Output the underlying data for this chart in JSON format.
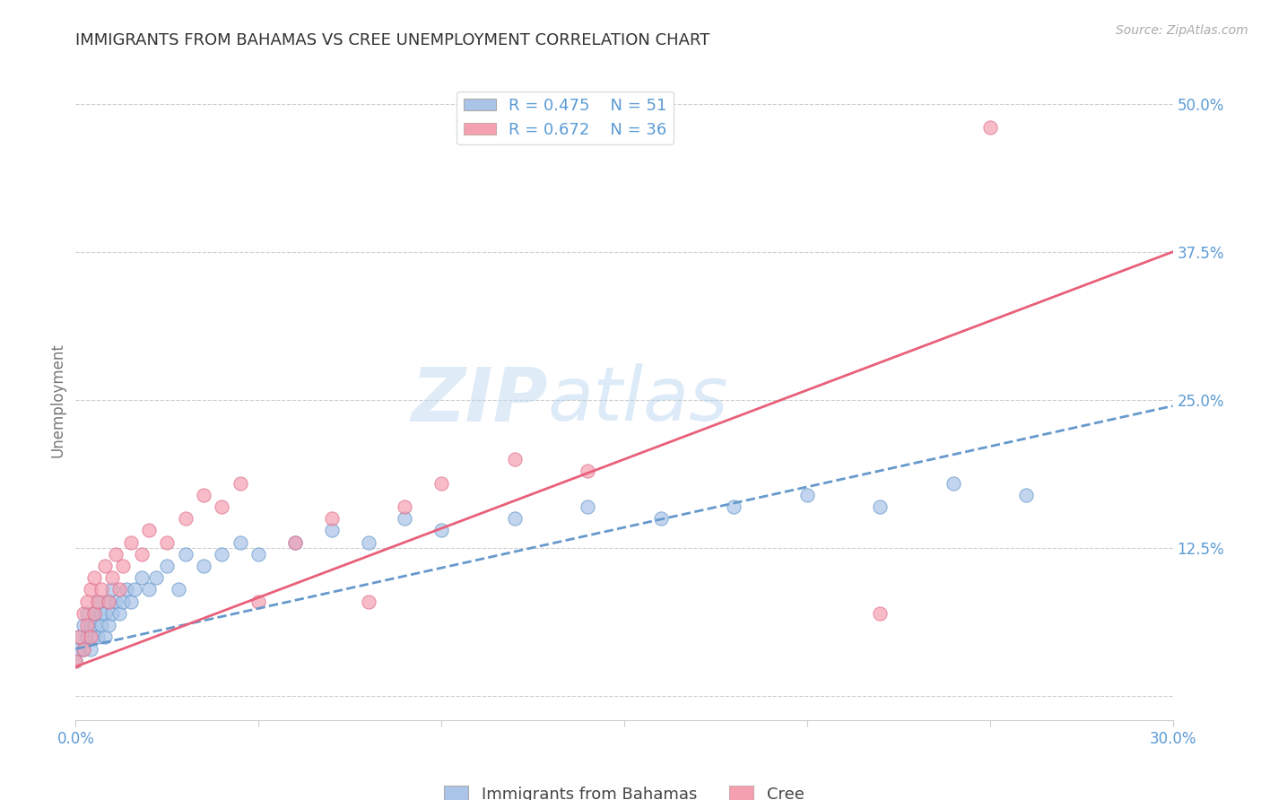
{
  "title": "IMMIGRANTS FROM BAHAMAS VS CREE UNEMPLOYMENT CORRELATION CHART",
  "source": "Source: ZipAtlas.com",
  "ylabel": "Unemployment",
  "legend_label_blue": "Immigrants from Bahamas",
  "legend_label_pink": "Cree",
  "R_blue": 0.475,
  "N_blue": 51,
  "R_pink": 0.672,
  "N_pink": 36,
  "xlim": [
    0.0,
    0.3
  ],
  "ylim": [
    -0.02,
    0.52
  ],
  "yticks": [
    0.0,
    0.125,
    0.25,
    0.375,
    0.5
  ],
  "ytick_labels": [
    "",
    "12.5%",
    "25.0%",
    "37.5%",
    "50.0%"
  ],
  "background_color": "#ffffff",
  "grid_color": "#c8c8c8",
  "title_color": "#333333",
  "axis_color": "#5b9bd5",
  "blue_scatter_color": "#aac4e8",
  "pink_scatter_color": "#f4a0b0",
  "blue_line_color": "#6699cc",
  "pink_line_color": "#e8607a",
  "blue_points_x": [
    0.0,
    0.001,
    0.001,
    0.002,
    0.002,
    0.003,
    0.003,
    0.004,
    0.004,
    0.005,
    0.005,
    0.005,
    0.006,
    0.006,
    0.007,
    0.007,
    0.008,
    0.008,
    0.009,
    0.009,
    0.01,
    0.01,
    0.011,
    0.012,
    0.013,
    0.014,
    0.015,
    0.016,
    0.018,
    0.02,
    0.022,
    0.025,
    0.028,
    0.03,
    0.035,
    0.04,
    0.045,
    0.05,
    0.06,
    0.07,
    0.08,
    0.09,
    0.1,
    0.12,
    0.14,
    0.16,
    0.18,
    0.2,
    0.22,
    0.24,
    0.26
  ],
  "blue_points_y": [
    0.03,
    0.04,
    0.05,
    0.04,
    0.06,
    0.05,
    0.07,
    0.04,
    0.06,
    0.05,
    0.06,
    0.07,
    0.05,
    0.08,
    0.06,
    0.07,
    0.05,
    0.07,
    0.06,
    0.08,
    0.07,
    0.09,
    0.08,
    0.07,
    0.08,
    0.09,
    0.08,
    0.09,
    0.1,
    0.09,
    0.1,
    0.11,
    0.09,
    0.12,
    0.11,
    0.12,
    0.13,
    0.12,
    0.13,
    0.14,
    0.13,
    0.15,
    0.14,
    0.15,
    0.16,
    0.15,
    0.16,
    0.17,
    0.16,
    0.18,
    0.17
  ],
  "pink_points_x": [
    0.0,
    0.001,
    0.002,
    0.002,
    0.003,
    0.003,
    0.004,
    0.004,
    0.005,
    0.005,
    0.006,
    0.007,
    0.008,
    0.009,
    0.01,
    0.011,
    0.012,
    0.013,
    0.015,
    0.018,
    0.02,
    0.025,
    0.03,
    0.035,
    0.04,
    0.045,
    0.05,
    0.06,
    0.07,
    0.08,
    0.09,
    0.1,
    0.12,
    0.14,
    0.22,
    0.25
  ],
  "pink_points_y": [
    0.03,
    0.05,
    0.04,
    0.07,
    0.06,
    0.08,
    0.05,
    0.09,
    0.07,
    0.1,
    0.08,
    0.09,
    0.11,
    0.08,
    0.1,
    0.12,
    0.09,
    0.11,
    0.13,
    0.12,
    0.14,
    0.13,
    0.15,
    0.17,
    0.16,
    0.18,
    0.08,
    0.13,
    0.15,
    0.08,
    0.16,
    0.18,
    0.2,
    0.19,
    0.07,
    0.48
  ],
  "blue_line_x": [
    0.0,
    0.3
  ],
  "blue_line_y": [
    0.04,
    0.245
  ],
  "pink_line_x": [
    0.0,
    0.3
  ],
  "pink_line_y": [
    0.025,
    0.375
  ]
}
